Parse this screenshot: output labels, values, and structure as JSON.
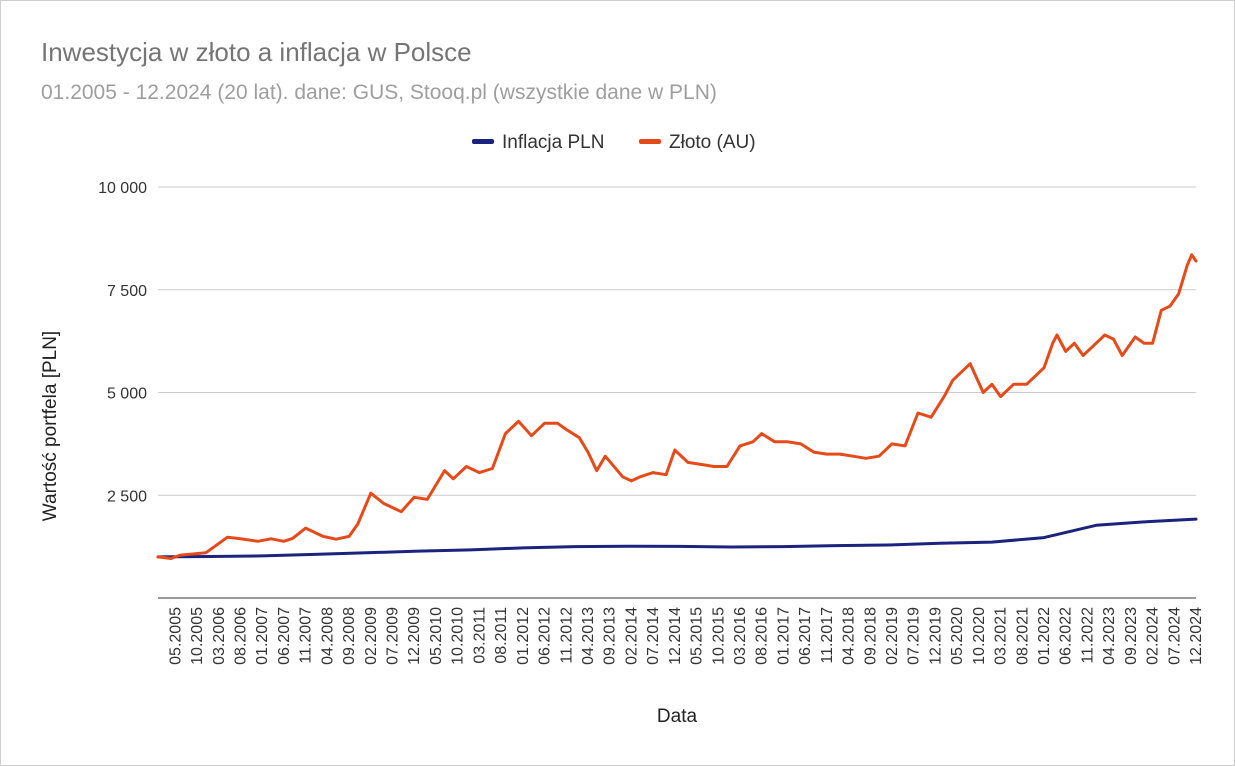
{
  "chart_data": {
    "type": "line",
    "title": "Inwestycja w złoto a inflacja w Polsce",
    "subtitle": "01.2005 - 12.2024 (20 lat). dane: GUS, Stooq.pl (wszystkie dane w PLN)",
    "xlabel": "Data",
    "ylabel": "Wartość portfela [PLN]",
    "ylim": [
      0,
      10000
    ],
    "yticks": [
      2500,
      5000,
      7500,
      10000
    ],
    "ytick_labels": [
      "2 500",
      "5 000",
      "7 500",
      "10 000"
    ],
    "grid": true,
    "legend_position": "top",
    "x_tick_labels": [
      "05.2005",
      "10.2005",
      "03.2006",
      "08.2006",
      "01.2007",
      "06.2007",
      "11.2007",
      "04.2008",
      "09.2008",
      "02.2009",
      "07.2009",
      "12.2009",
      "05.2010",
      "10.2010",
      "03.2011",
      "08.2011",
      "01.2012",
      "06.2012",
      "11.2012",
      "04.2013",
      "09.2013",
      "02.2014",
      "07.2014",
      "12.2014",
      "05.2015",
      "10.2015",
      "03.2016",
      "08.2016",
      "01.2017",
      "06.2017",
      "11.2017",
      "04.2018",
      "09.2018",
      "02.2019",
      "07.2019",
      "12.2019",
      "05.2020",
      "10.2020",
      "03.2021",
      "08.2021",
      "01.2022",
      "06.2022",
      "11.2022",
      "04.2023",
      "09.2023",
      "02.2024",
      "07.2024",
      "12.2024"
    ],
    "series": [
      {
        "name": "Inflacja PLN",
        "color": "#1a237e",
        "points": [
          [
            "01.2005",
            1000
          ],
          [
            "01.2006",
            1010
          ],
          [
            "01.2007",
            1025
          ],
          [
            "01.2008",
            1060
          ],
          [
            "01.2009",
            1100
          ],
          [
            "01.2010",
            1140
          ],
          [
            "01.2011",
            1170
          ],
          [
            "01.2012",
            1220
          ],
          [
            "01.2013",
            1250
          ],
          [
            "01.2014",
            1260
          ],
          [
            "01.2015",
            1255
          ],
          [
            "01.2016",
            1240
          ],
          [
            "01.2017",
            1250
          ],
          [
            "01.2018",
            1275
          ],
          [
            "01.2019",
            1290
          ],
          [
            "01.2020",
            1330
          ],
          [
            "01.2021",
            1360
          ],
          [
            "01.2022",
            1470
          ],
          [
            "01.2023",
            1770
          ],
          [
            "01.2024",
            1860
          ],
          [
            "12.2024",
            1920
          ]
        ]
      },
      {
        "name": "Złoto (AU)",
        "color": "#e64a19",
        "points": [
          [
            "01.2005",
            1000
          ],
          [
            "04.2005",
            960
          ],
          [
            "06.2005",
            1040
          ],
          [
            "12.2005",
            1100
          ],
          [
            "05.2006",
            1480
          ],
          [
            "08.2006",
            1440
          ],
          [
            "12.2006",
            1380
          ],
          [
            "03.2007",
            1440
          ],
          [
            "06.2007",
            1380
          ],
          [
            "08.2007",
            1450
          ],
          [
            "11.2007",
            1700
          ],
          [
            "03.2008",
            1500
          ],
          [
            "06.2008",
            1430
          ],
          [
            "09.2008",
            1500
          ],
          [
            "11.2008",
            1800
          ],
          [
            "02.2009",
            2550
          ],
          [
            "05.2009",
            2300
          ],
          [
            "09.2009",
            2100
          ],
          [
            "12.2009",
            2450
          ],
          [
            "03.2010",
            2400
          ],
          [
            "07.2010",
            3100
          ],
          [
            "09.2010",
            2900
          ],
          [
            "12.2010",
            3200
          ],
          [
            "03.2011",
            3050
          ],
          [
            "06.2011",
            3150
          ],
          [
            "09.2011",
            4000
          ],
          [
            "10.2011",
            4100
          ],
          [
            "12.2011",
            4300
          ],
          [
            "03.2012",
            3950
          ],
          [
            "06.2012",
            4250
          ],
          [
            "09.2012",
            4250
          ],
          [
            "11.2012",
            4100
          ],
          [
            "02.2013",
            3900
          ],
          [
            "04.2013",
            3550
          ],
          [
            "06.2013",
            3100
          ],
          [
            "08.2013",
            3450
          ],
          [
            "12.2013",
            2950
          ],
          [
            "02.2014",
            2850
          ],
          [
            "04.2014",
            2950
          ],
          [
            "07.2014",
            3050
          ],
          [
            "10.2014",
            3000
          ],
          [
            "12.2014",
            3600
          ],
          [
            "03.2015",
            3300
          ],
          [
            "06.2015",
            3250
          ],
          [
            "09.2015",
            3200
          ],
          [
            "12.2015",
            3200
          ],
          [
            "03.2016",
            3700
          ],
          [
            "06.2016",
            3800
          ],
          [
            "08.2016",
            4000
          ],
          [
            "11.2016",
            3800
          ],
          [
            "02.2017",
            3800
          ],
          [
            "05.2017",
            3750
          ],
          [
            "08.2017",
            3550
          ],
          [
            "11.2017",
            3500
          ],
          [
            "02.2018",
            3500
          ],
          [
            "05.2018",
            3450
          ],
          [
            "08.2018",
            3400
          ],
          [
            "11.2018",
            3450
          ],
          [
            "02.2019",
            3750
          ],
          [
            "05.2019",
            3700
          ],
          [
            "08.2019",
            4500
          ],
          [
            "11.2019",
            4400
          ],
          [
            "02.2020",
            4900
          ],
          [
            "04.2020",
            5300
          ],
          [
            "08.2020",
            5700
          ],
          [
            "11.2020",
            5000
          ],
          [
            "01.2021",
            5200
          ],
          [
            "03.2021",
            4900
          ],
          [
            "06.2021",
            5200
          ],
          [
            "09.2021",
            5200
          ],
          [
            "12.2021",
            5500
          ],
          [
            "01.2022",
            5600
          ],
          [
            "03.2022",
            6200
          ],
          [
            "04.2022",
            6400
          ],
          [
            "06.2022",
            6000
          ],
          [
            "08.2022",
            6200
          ],
          [
            "10.2022",
            5900
          ],
          [
            "12.2022",
            6100
          ],
          [
            "03.2023",
            6400
          ],
          [
            "05.2023",
            6300
          ],
          [
            "07.2023",
            5900
          ],
          [
            "10.2023",
            6350
          ],
          [
            "12.2023",
            6200
          ],
          [
            "02.2024",
            6200
          ],
          [
            "04.2024",
            7000
          ],
          [
            "06.2024",
            7100
          ],
          [
            "08.2024",
            7400
          ],
          [
            "10.2024",
            8100
          ],
          [
            "11.2024",
            8350
          ],
          [
            "12.2024",
            8200
          ]
        ]
      }
    ]
  }
}
